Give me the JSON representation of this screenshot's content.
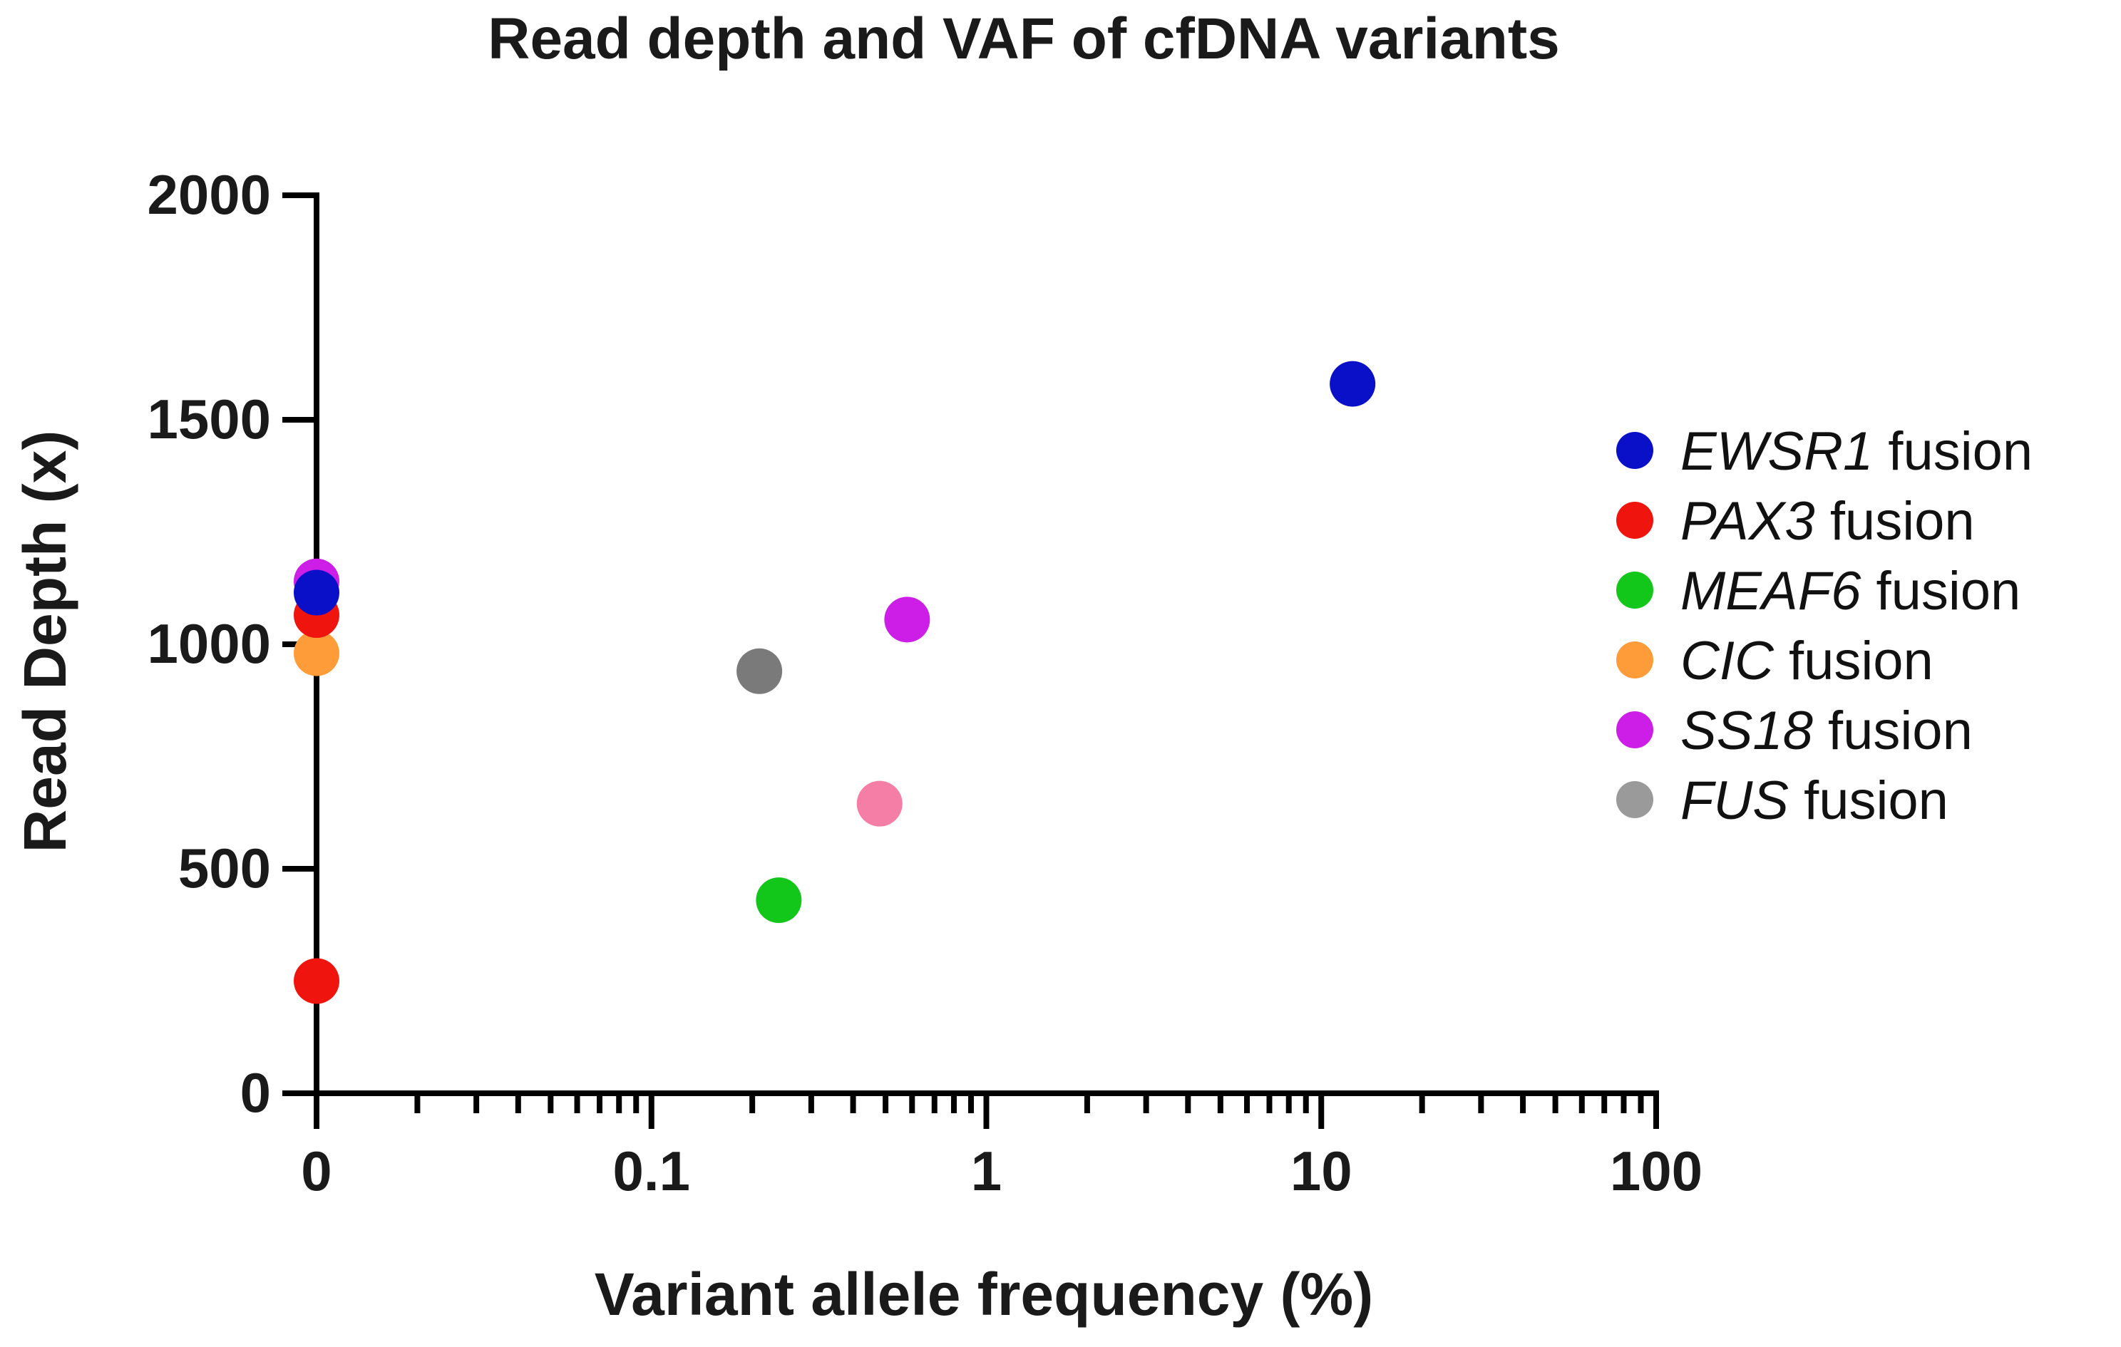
{
  "chart_data": {
    "type": "scatter",
    "title": "Read depth and VAF of cfDNA variants",
    "xlabel": "Variant allele frequency (%)",
    "ylabel": "Read Depth (x)",
    "x_scale": "log",
    "xlim": [
      0.01,
      100
    ],
    "ylim": [
      0,
      2000
    ],
    "x_ticks": [
      {
        "value": 0.01,
        "label": "0"
      },
      {
        "value": 0.1,
        "label": "0.1"
      },
      {
        "value": 1,
        "label": "1"
      },
      {
        "value": 10,
        "label": "10"
      },
      {
        "value": 100,
        "label": "100"
      }
    ],
    "y_ticks": [
      {
        "value": 0,
        "label": "0"
      },
      {
        "value": 500,
        "label": "500"
      },
      {
        "value": 1000,
        "label": "1000"
      },
      {
        "value": 1500,
        "label": "1500"
      },
      {
        "value": 2000,
        "label": "2000"
      }
    ],
    "legend_position": "right",
    "series": [
      {
        "name": "EWSR1",
        "suffix": " fusion",
        "color": "#0a10c8",
        "points": [
          {
            "x": 12.4,
            "y": 1580
          },
          {
            "x": 0.01,
            "y": 1115
          }
        ]
      },
      {
        "name": "PAX3",
        "suffix": " fusion",
        "color": "#f0140f",
        "points": [
          {
            "x": 0.01,
            "y": 1065
          },
          {
            "x": 0.01,
            "y": 250
          }
        ]
      },
      {
        "name": "MEAF6",
        "suffix": " fusion",
        "color": "#12c71a",
        "points": [
          {
            "x": 0.24,
            "y": 430
          }
        ]
      },
      {
        "name": "CIC",
        "suffix": " fusion",
        "color": "#ff9c3a",
        "points": [
          {
            "x": 0.01,
            "y": 980
          }
        ]
      },
      {
        "name": "SS18",
        "suffix": " fusion",
        "color": "#cc1ee6",
        "points": [
          {
            "x": 0.58,
            "y": 1055
          },
          {
            "x": 0.01,
            "y": 1140
          }
        ]
      },
      {
        "name": "FUS",
        "suffix": " fusion",
        "color": "#9a9a9a",
        "points": []
      }
    ],
    "extra_points": [
      {
        "x": 0.21,
        "y": 940,
        "color": "#7a7a7a"
      },
      {
        "x": 0.48,
        "y": 645,
        "color": "#f47ea6"
      }
    ]
  }
}
